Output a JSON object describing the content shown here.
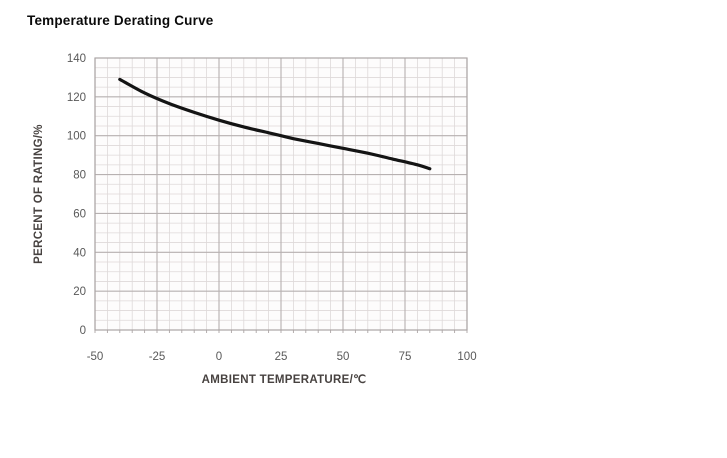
{
  "page": {
    "background": "#ffffff"
  },
  "chart_data": {
    "type": "line",
    "title": "Temperature Derating Curve",
    "xlabel": "AMBIENT TEMPERATURE/℃",
    "ylabel": "PERCENT OF RATING/%",
    "xlim": [
      -50,
      100
    ],
    "ylim": [
      0,
      140
    ],
    "x_major_ticks": [
      -50,
      -25,
      0,
      25,
      50,
      75,
      100
    ],
    "y_major_ticks": [
      0,
      20,
      40,
      60,
      80,
      100,
      120,
      140
    ],
    "minor_step_x": 5,
    "minor_step_y": 5,
    "grid": "major-and-minor",
    "legend": "none",
    "series": [
      {
        "name": "derating-curve",
        "x": [
          -40,
          -30,
          -20,
          -10,
          0,
          10,
          20,
          25,
          30,
          40,
          50,
          60,
          70,
          80,
          85
        ],
        "y": [
          129,
          122,
          116.5,
          112,
          108,
          104.5,
          101.5,
          100,
          98.5,
          96,
          93.5,
          91,
          88,
          85,
          83
        ]
      }
    ],
    "colors": {
      "background": "#ffffff",
      "plot_background": "#fdfcfc",
      "minor_grid": "#ded9d9",
      "major_grid": "#b7b1b1",
      "frame": "#aba5a5",
      "curve": "#141414",
      "tick_label": "#595959",
      "axis_title": "#474240",
      "title": "#0a0a0a"
    }
  }
}
